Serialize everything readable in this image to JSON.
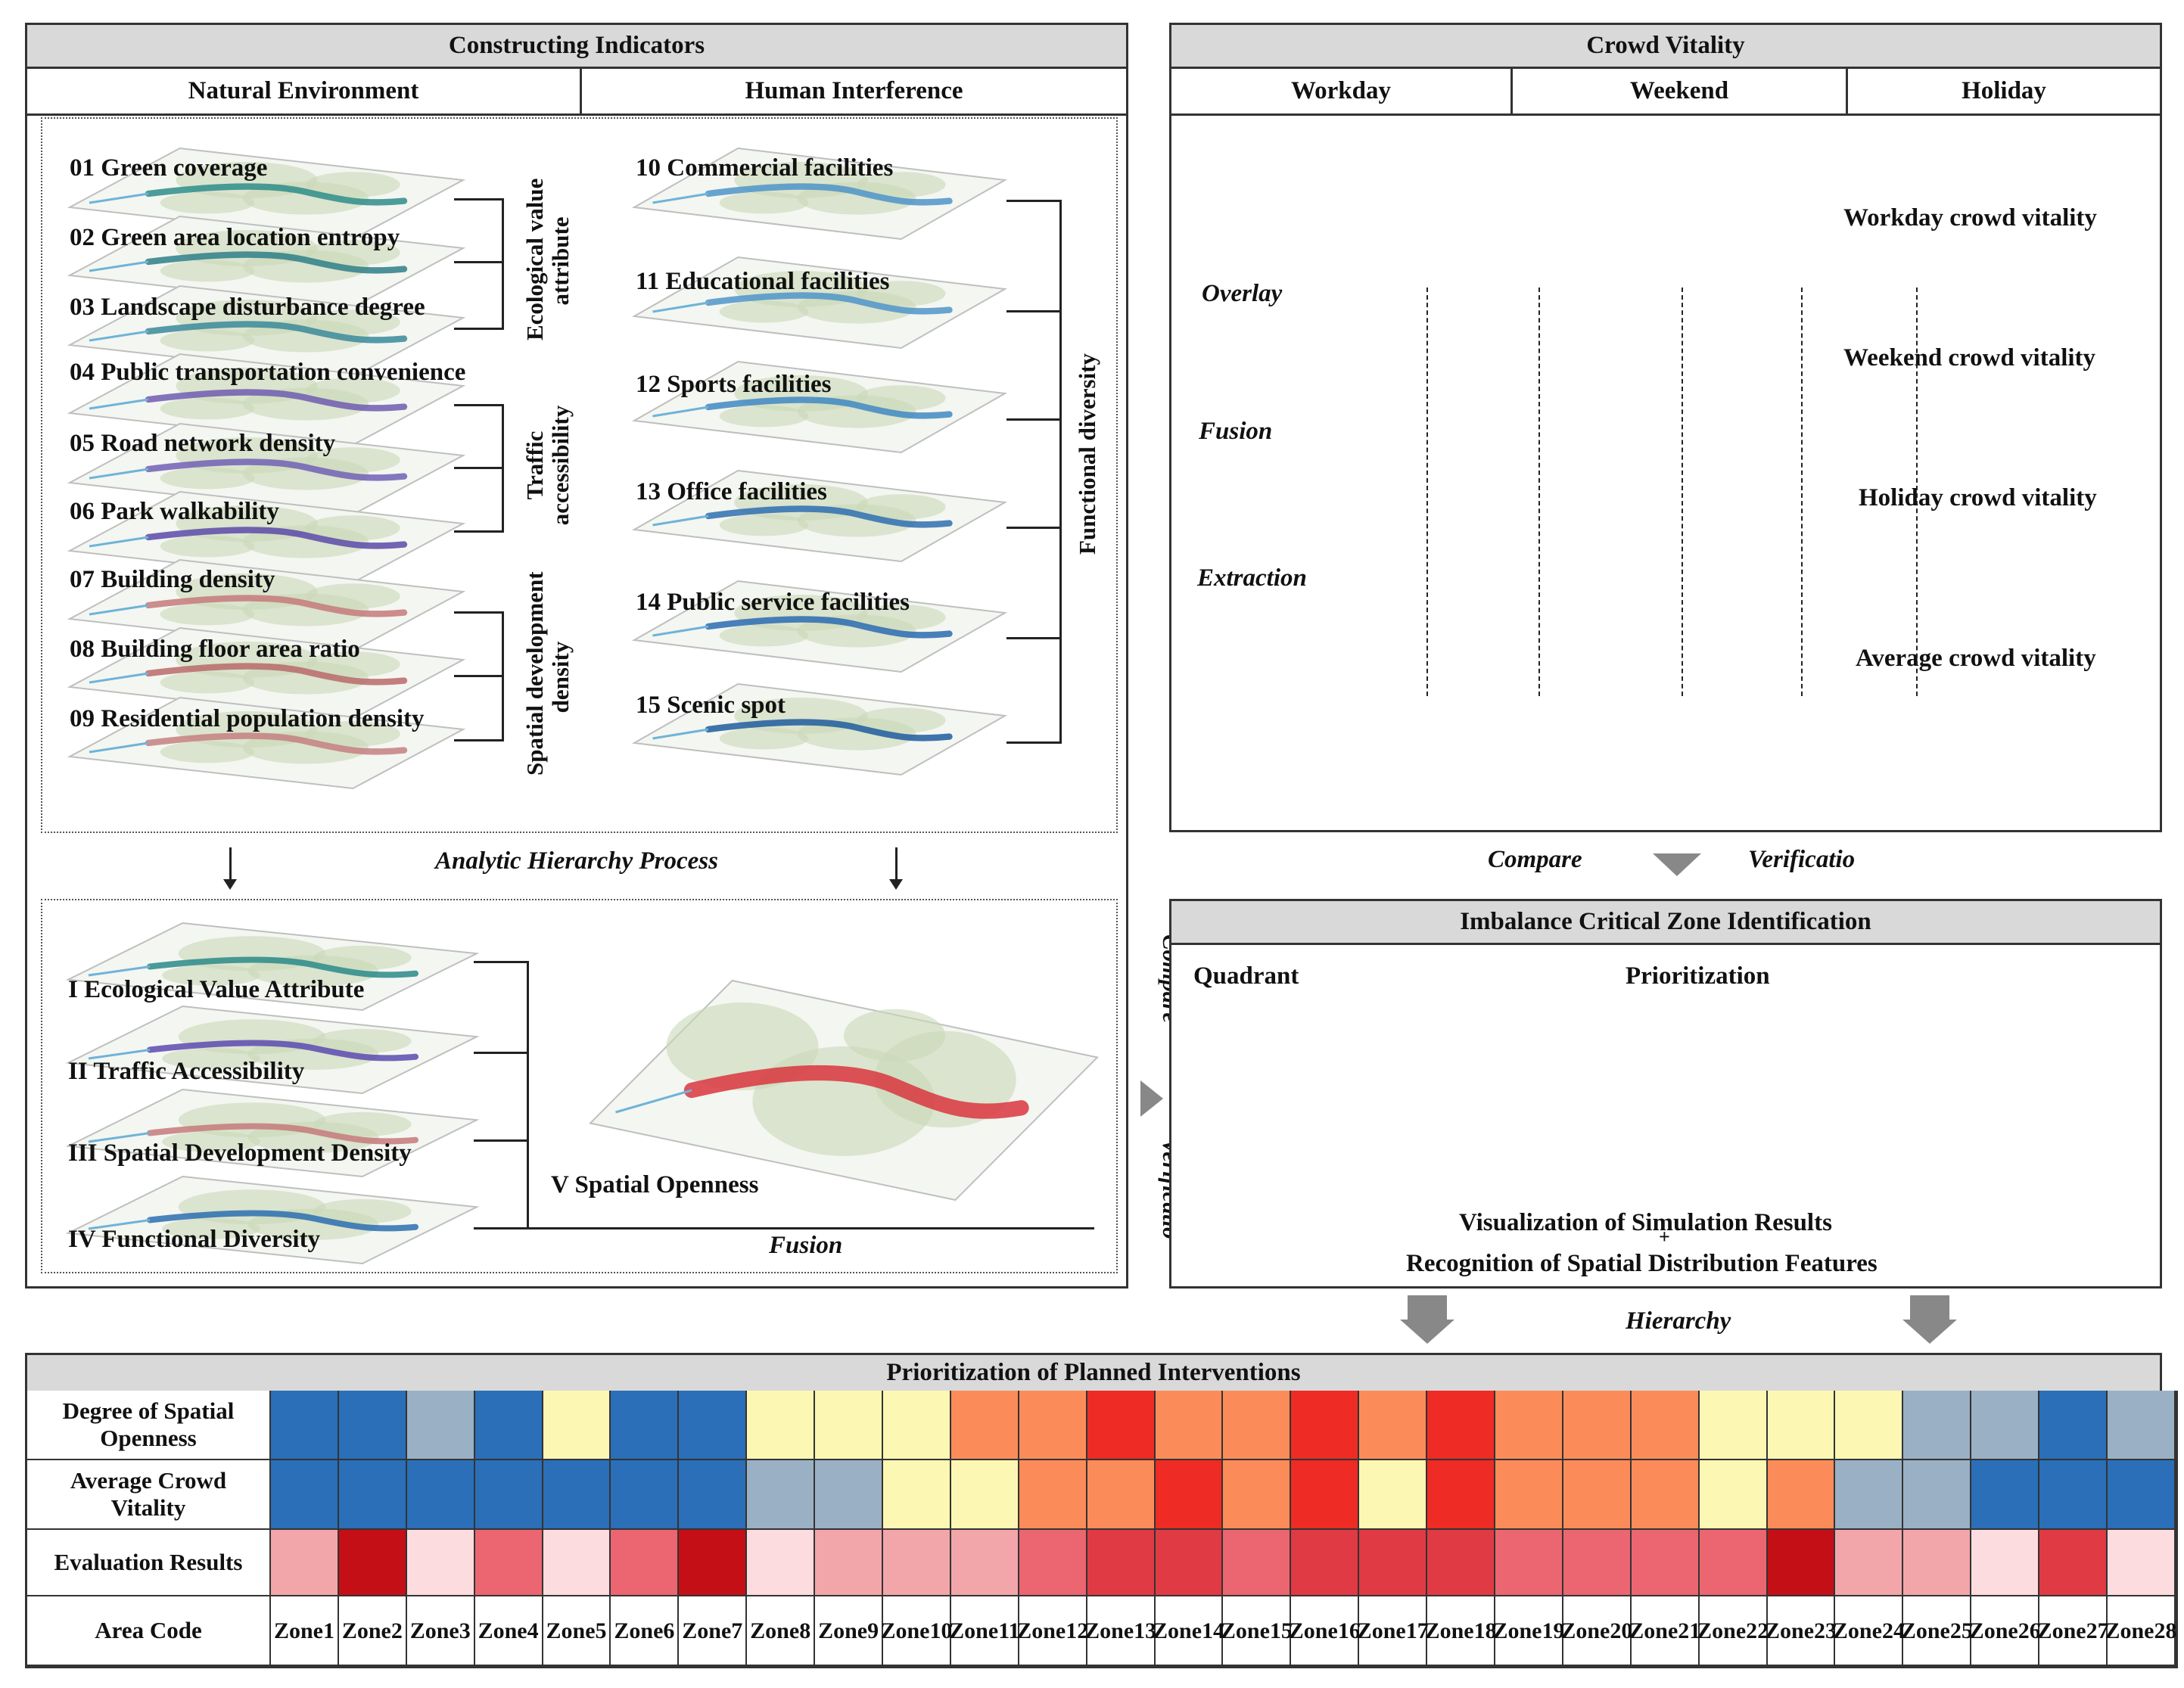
{
  "indicators": {
    "title": "Constructing Indicators",
    "natural_title": "Natural Environment",
    "human_title": "Human Interference",
    "natural_items": [
      "01 Green coverage",
      "02 Green area location entropy",
      "03 Landscape disturbance degree",
      "04 Public transportation convenience",
      "05 Road network density",
      "06 Park walkability",
      "07 Building density",
      "08 Building floor area ratio",
      "09 Residential population density"
    ],
    "human_items": [
      "10 Commercial facilities",
      "11 Educational facilities",
      "12 Sports facilities",
      "13 Office facilities",
      "14 Public service facilities",
      "15 Scenic spot"
    ],
    "group_ecological": "Ecological value attribute",
    "group_traffic": "Traffic accessibility",
    "group_spatial": "Spatial development density",
    "group_functional": "Functional diversity",
    "ahp": "Analytic Hierarchy Process",
    "results": [
      "I  Ecological Value Attribute",
      "II  Traffic Accessibility",
      "III  Spatial Development Density",
      "IV   Functional Diversity"
    ],
    "openness": "V  Spatial Openness",
    "fusion": "Fusion"
  },
  "vitality": {
    "title": "Crowd Vitality",
    "tabs": [
      "Workday",
      "Weekend",
      "Holiday"
    ],
    "layers": [
      "Workday crowd vitality",
      "Weekend crowd vitality",
      "Holiday crowd vitality",
      "Average crowd vitality"
    ],
    "ops": [
      "Overlay",
      "Fusion",
      "Extraction"
    ],
    "compare": "Compare",
    "verification": "Verificatio"
  },
  "imbalance": {
    "title": "Imbalance Critical Zone Identification",
    "quadrant": "Quadrant",
    "prioritization": "Prioritization",
    "vis1": "Visualization of Simulation Results",
    "plus": "+",
    "vis2": "Recognition of Spatial Distribution Features",
    "side_compare": "Compare",
    "side_verification": "Verificatio",
    "hierarchy": "Hierarchy"
  },
  "priority": {
    "title": "Prioritization of Planned Interventions",
    "rows": [
      "Degree of Spatial Openness",
      "Average Crowd Vitality",
      "Evaluation Results",
      "Area Code"
    ],
    "zone_prefix": "Zone",
    "zones": [
      "1",
      "2",
      "3",
      "4",
      "5",
      "6",
      "7",
      "8",
      "9",
      "10",
      "11",
      "12",
      "13",
      "14",
      "15",
      "16",
      "17",
      "18",
      "19",
      "20",
      "21",
      "22",
      "23",
      "24",
      "25",
      "26",
      "27",
      "28"
    ],
    "openness_levels": [
      1,
      1,
      2,
      1,
      3,
      1,
      1,
      3,
      3,
      3,
      4,
      4,
      5,
      4,
      4,
      5,
      4,
      5,
      4,
      4,
      4,
      3,
      3,
      3,
      2,
      2,
      1,
      2
    ],
    "vitality_levels": [
      1,
      1,
      1,
      1,
      1,
      1,
      1,
      2,
      2,
      3,
      3,
      4,
      4,
      5,
      4,
      5,
      3,
      5,
      4,
      4,
      4,
      3,
      4,
      2,
      2,
      1,
      1,
      1
    ],
    "evaluation_levels": [
      2,
      5,
      1,
      3,
      1,
      3,
      5,
      1,
      2,
      2,
      2,
      3,
      4,
      4,
      3,
      4,
      4,
      4,
      3,
      3,
      3,
      3,
      5,
      2,
      2,
      1,
      4,
      1
    ],
    "palette_vitality": {
      "1": "#2a6fb8",
      "2": "#9ab0c4",
      "3": "#fdf7b4",
      "4": "#fb8c5a",
      "5": "#ee2b24"
    },
    "palette_evaluation": {
      "1": "#fcdcdf",
      "2": "#f2a6aa",
      "3": "#eb6670",
      "4": "#e03a44",
      "5": "#c40f16"
    }
  }
}
